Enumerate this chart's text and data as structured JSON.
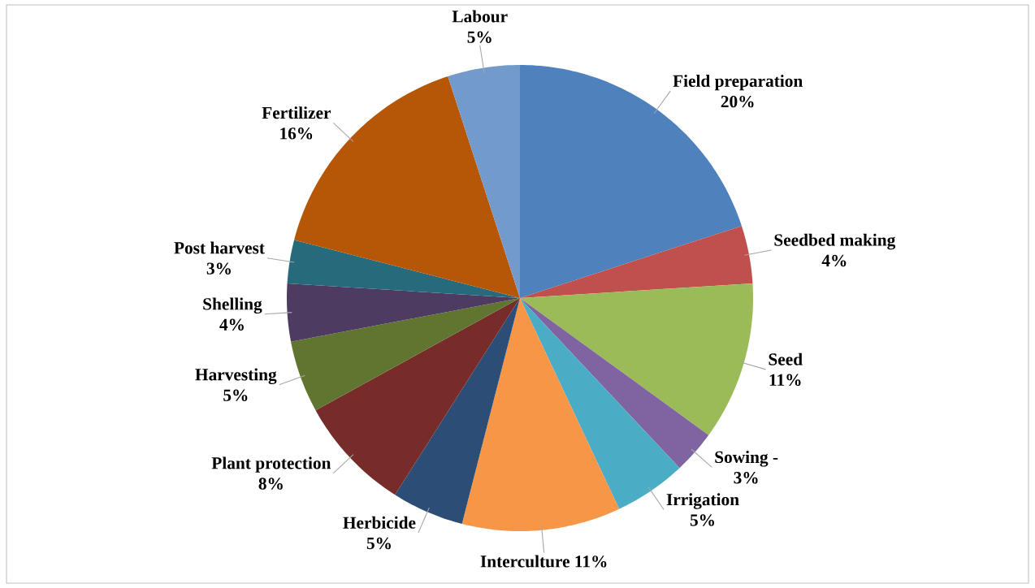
{
  "chart_data": {
    "type": "pie",
    "categories": [
      "Field preparation",
      "Seedbed making",
      "Seed",
      "Sowing -",
      "Irrigation",
      "Interculture",
      "Herbicide",
      "Plant protection",
      "Harvesting",
      "Shelling",
      "Post harvest",
      "Fertilizer",
      "Labour"
    ],
    "values": [
      20,
      4,
      11,
      3,
      5,
      11,
      5,
      8,
      5,
      4,
      3,
      16,
      5
    ],
    "colors": [
      "#4f81bd",
      "#c0504d",
      "#9bbb59",
      "#8064a2",
      "#4bacc6",
      "#f79646",
      "#2c4d75",
      "#772c2a",
      "#5f7530",
      "#4d3b62",
      "#276a7c",
      "#b65708",
      "#729aca"
    ],
    "value_labels": [
      "20%",
      "4%",
      "11%",
      "3%",
      "5%",
      "11%",
      "5%",
      "8%",
      "5%",
      "4%",
      "3%",
      "16%",
      "5%"
    ]
  }
}
